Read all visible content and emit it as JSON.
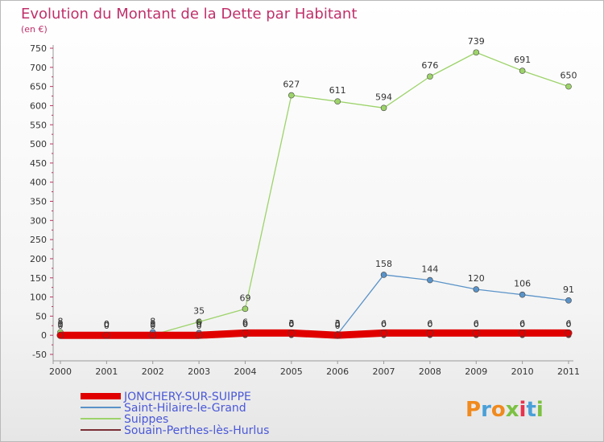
{
  "chart_data": {
    "type": "line",
    "title": "Evolution du Montant de la Dette par Habitant",
    "subtitle": "(en €)",
    "x": [
      "2000",
      "2001",
      "2002",
      "2003",
      "2004",
      "2005",
      "2006",
      "2007",
      "2008",
      "2009",
      "2010",
      "2011"
    ],
    "ylim": [
      -50,
      750
    ],
    "yticks": [
      -50,
      0,
      50,
      100,
      150,
      200,
      250,
      300,
      350,
      400,
      450,
      500,
      550,
      600,
      650,
      700,
      750
    ],
    "grid": false,
    "legend_placement": "bottom-left",
    "series": [
      {
        "name": "JONCHERY-SUR-SUIPPE",
        "color": "#e00000",
        "values": [
          0,
          0,
          0,
          0,
          6,
          6,
          0,
          6,
          6,
          6,
          6,
          6
        ],
        "labels": [
          "0",
          "0",
          "0",
          "0",
          "6",
          "6",
          "0",
          "6",
          "6",
          "6",
          "6",
          "6"
        ]
      },
      {
        "name": "Saint-Hilaire-le-Grand",
        "color": "#5a93c8",
        "values": [
          1,
          0,
          8,
          6,
          6,
          3,
          3,
          158,
          144,
          120,
          106,
          91
        ],
        "labels": [
          "1",
          "0",
          "8",
          "6",
          "6",
          "3",
          "3",
          "158",
          "144",
          "120",
          "106",
          "91"
        ]
      },
      {
        "name": "Suippes",
        "color": "#9dd36a",
        "values": [
          8,
          0,
          1,
          35,
          69,
          627,
          611,
          594,
          676,
          739,
          691,
          650
        ],
        "labels": [
          "8",
          "0",
          "1",
          "35",
          "69",
          "627",
          "611",
          "594",
          "676",
          "739",
          "691",
          "650"
        ]
      },
      {
        "name": "Souain-Perthes-lès-Hurlus",
        "color": "#7a2f35",
        "values": [
          0,
          0,
          0,
          0,
          0,
          0,
          0,
          0,
          0,
          0,
          0,
          0
        ],
        "labels": [
          "0",
          "0",
          "0",
          "0",
          "0",
          "0",
          "0",
          "0",
          "0",
          "0",
          "0",
          "0"
        ]
      }
    ]
  },
  "logo": {
    "text": "Proxiti",
    "letter_colors": [
      "#f08a1e",
      "#4aa0d8",
      "#f08a1e",
      "#7cc142",
      "#e6334d",
      "#4aa0d8",
      "#7cc142"
    ]
  }
}
